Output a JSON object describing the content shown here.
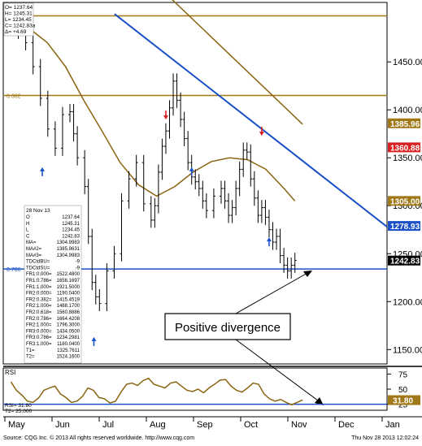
{
  "chart_data": {
    "type": "candlestick",
    "ohlc_box": {
      "lines": [
        {
          "label": "O=",
          "value": "1237.64"
        },
        {
          "label": "H=",
          "value": "1245.31"
        },
        {
          "label": "L=",
          "value": "1234.45"
        },
        {
          "label": "C=",
          "value": "1242.83a"
        },
        {
          "label": "Δ=",
          "value": "+4.69"
        }
      ]
    },
    "data_panel": {
      "date": "28 Nov 13",
      "rows": [
        {
          "label": "O",
          "value": "1237.64"
        },
        {
          "label": "H",
          "value": "1245.31"
        },
        {
          "label": "L",
          "value": "1234.45"
        },
        {
          "label": "C",
          "value": "1242.83"
        },
        {
          "label": "MA=",
          "value": "1304.9983"
        },
        {
          "label": "MA#2=",
          "value": "1385.9631"
        },
        {
          "label": "MA#3=",
          "value": "1304.9983"
        },
        {
          "label": "TDCtdBU=",
          "value": "-9"
        },
        {
          "label": "TDCtdSU=",
          "value": "-9"
        },
        {
          "label": "FR1:0.000=",
          "value": "1522.4800"
        },
        {
          "label": "FR1:0.786=",
          "value": "1656.1697"
        },
        {
          "label": "FR1:1.000=",
          "value": "1921.5000"
        },
        {
          "label": "FR2:0.000=",
          "value": "1190.0400"
        },
        {
          "label": "FR2:0.382=",
          "value": "1415.4519"
        },
        {
          "label": "FR2:1.000=",
          "value": "1488.1700"
        },
        {
          "label": "FR2:0.618=",
          "value": "1560.8886"
        },
        {
          "label": "FR2:0.786=",
          "value": "1664.4208"
        },
        {
          "label": "FR2:1.000=",
          "value": "1796.3000"
        },
        {
          "label": "FR3:0.000=",
          "value": "1434.0500"
        },
        {
          "label": "FR3:0.786=",
          "value": "1234.2981"
        },
        {
          "label": "FR3:1.000=",
          "value": "1180.0400"
        },
        {
          "label": "T1=",
          "value": "1325.7611"
        },
        {
          "label": "T2=",
          "value": "1524.1600"
        }
      ]
    },
    "y_axis": {
      "min": 1135,
      "max": 1512,
      "ticks": [
        1150,
        1200,
        1250,
        1300,
        1350,
        1400,
        1450
      ]
    },
    "price_labels": [
      {
        "value": "1385.96",
        "price": 1385.96,
        "color": "#a07818",
        "text_color": "#ffffff"
      },
      {
        "value": "1360.88",
        "price": 1360.88,
        "color": "#d82020",
        "text_color": "#ffffff"
      },
      {
        "value": "1305.00",
        "price": 1305.0,
        "color": "#a07818",
        "text_color": "#ffffff"
      },
      {
        "value": "1278.93",
        "price": 1278.93,
        "color": "#1a50c8",
        "text_color": "#ffffff"
      },
      {
        "value": "1242.83",
        "price": 1242.83,
        "color": "#000000",
        "text_color": "#ffffff"
      }
    ],
    "horizontal_lines": [
      {
        "price": 1498,
        "color": "#a07818",
        "label": ""
      },
      {
        "price": 1415,
        "color": "#a07818",
        "label": "0.382"
      },
      {
        "price": 1234,
        "color": "#1a50c8",
        "label": "0.786"
      }
    ],
    "trendlines": [
      {
        "from": [
          0.29,
          1500
        ],
        "to": [
          1.0,
          1278
        ],
        "color": "#1a50c8",
        "width": 2
      },
      {
        "from": [
          0.44,
          1515
        ],
        "to": [
          0.78,
          1385
        ],
        "color": "#8a6410",
        "width": 1.5
      }
    ],
    "price_series": {
      "t": [
        0.0,
        0.02,
        0.04,
        0.06,
        0.08,
        0.1,
        0.12,
        0.14,
        0.16,
        0.17,
        0.18,
        0.2,
        0.21,
        0.22,
        0.23,
        0.24,
        0.26,
        0.28,
        0.3,
        0.32,
        0.34,
        0.36,
        0.38,
        0.39,
        0.4,
        0.41,
        0.42,
        0.43,
        0.44,
        0.45,
        0.46,
        0.47,
        0.48,
        0.49,
        0.5,
        0.51,
        0.52,
        0.53,
        0.55,
        0.57,
        0.58,
        0.59,
        0.6,
        0.61,
        0.62,
        0.63,
        0.64,
        0.65,
        0.66,
        0.67,
        0.68,
        0.69,
        0.7,
        0.71,
        0.72,
        0.73,
        0.74,
        0.75,
        0.76,
        0.77
      ],
      "close": [
        1500,
        1482,
        1470,
        1445,
        1412,
        1380,
        1360,
        1395,
        1398,
        1375,
        1350,
        1320,
        1268,
        1220,
        1205,
        1198,
        1232,
        1250,
        1305,
        1328,
        1345,
        1302,
        1285,
        1300,
        1335,
        1362,
        1378,
        1402,
        1430,
        1410,
        1390,
        1370,
        1345,
        1330,
        1325,
        1318,
        1305,
        1295,
        1310,
        1318,
        1305,
        1290,
        1298,
        1318,
        1338,
        1358,
        1356,
        1328,
        1308,
        1290,
        1298,
        1288,
        1275,
        1262,
        1268,
        1248,
        1238,
        1232,
        1238,
        1243
      ]
    },
    "moving_averages": [
      {
        "color": "#8a6410",
        "t": [
          0.0,
          0.05,
          0.1,
          0.15,
          0.2,
          0.25,
          0.3,
          0.35,
          0.4,
          0.45,
          0.5,
          0.55,
          0.6,
          0.65,
          0.7,
          0.75,
          0.78
        ],
        "values": [
          1500,
          1485,
          1470,
          1445,
          1410,
          1378,
          1345,
          1322,
          1310,
          1320,
          1335,
          1346,
          1350,
          1348,
          1338,
          1318,
          1305
        ]
      }
    ],
    "td_arrows_up": [
      {
        "t": 0.085,
        "price": 1335
      },
      {
        "t": 0.225,
        "price": 1158
      },
      {
        "t": 0.49,
        "price": 1335
      },
      {
        "t": 0.7,
        "price": 1262
      }
    ],
    "td_arrows_down": [
      {
        "t": 0.42,
        "price": 1395
      },
      {
        "t": 0.68,
        "price": 1378
      }
    ],
    "annotation": {
      "text": "Positive divergence"
    },
    "rsi": {
      "label": "RSI",
      "readout": [
        {
          "label": "RSI=",
          "value": "31.80"
        },
        {
          "label": "T2=",
          "value": "25.000"
        }
      ],
      "ticks": [
        25,
        50,
        75
      ],
      "ylim": [
        15,
        85
      ],
      "current_label": {
        "value": "31.80",
        "color": "#a07818"
      },
      "values": [
        62,
        48,
        40,
        30,
        28,
        35,
        48,
        52,
        55,
        42,
        36,
        28,
        30,
        38,
        52,
        48,
        36,
        34,
        27,
        30,
        45,
        58,
        60,
        56,
        64,
        68,
        58,
        55,
        52,
        60,
        62,
        55,
        48,
        46,
        50,
        44,
        52,
        58,
        65,
        66,
        55,
        48,
        45,
        52,
        60,
        58,
        42,
        34,
        30,
        33,
        28,
        24,
        28,
        32
      ]
    },
    "x_labels": [
      "May",
      "Jun",
      "Jul",
      "Aug",
      "Sep",
      "Oct",
      "Nov",
      "Dec",
      "Jan"
    ],
    "footer_left": "Source: CQG Inc. © 2013 All rights reserved worldwide. http://www.cqg.com",
    "footer_right": "Thu Nov 28 2013 12:02:24"
  }
}
